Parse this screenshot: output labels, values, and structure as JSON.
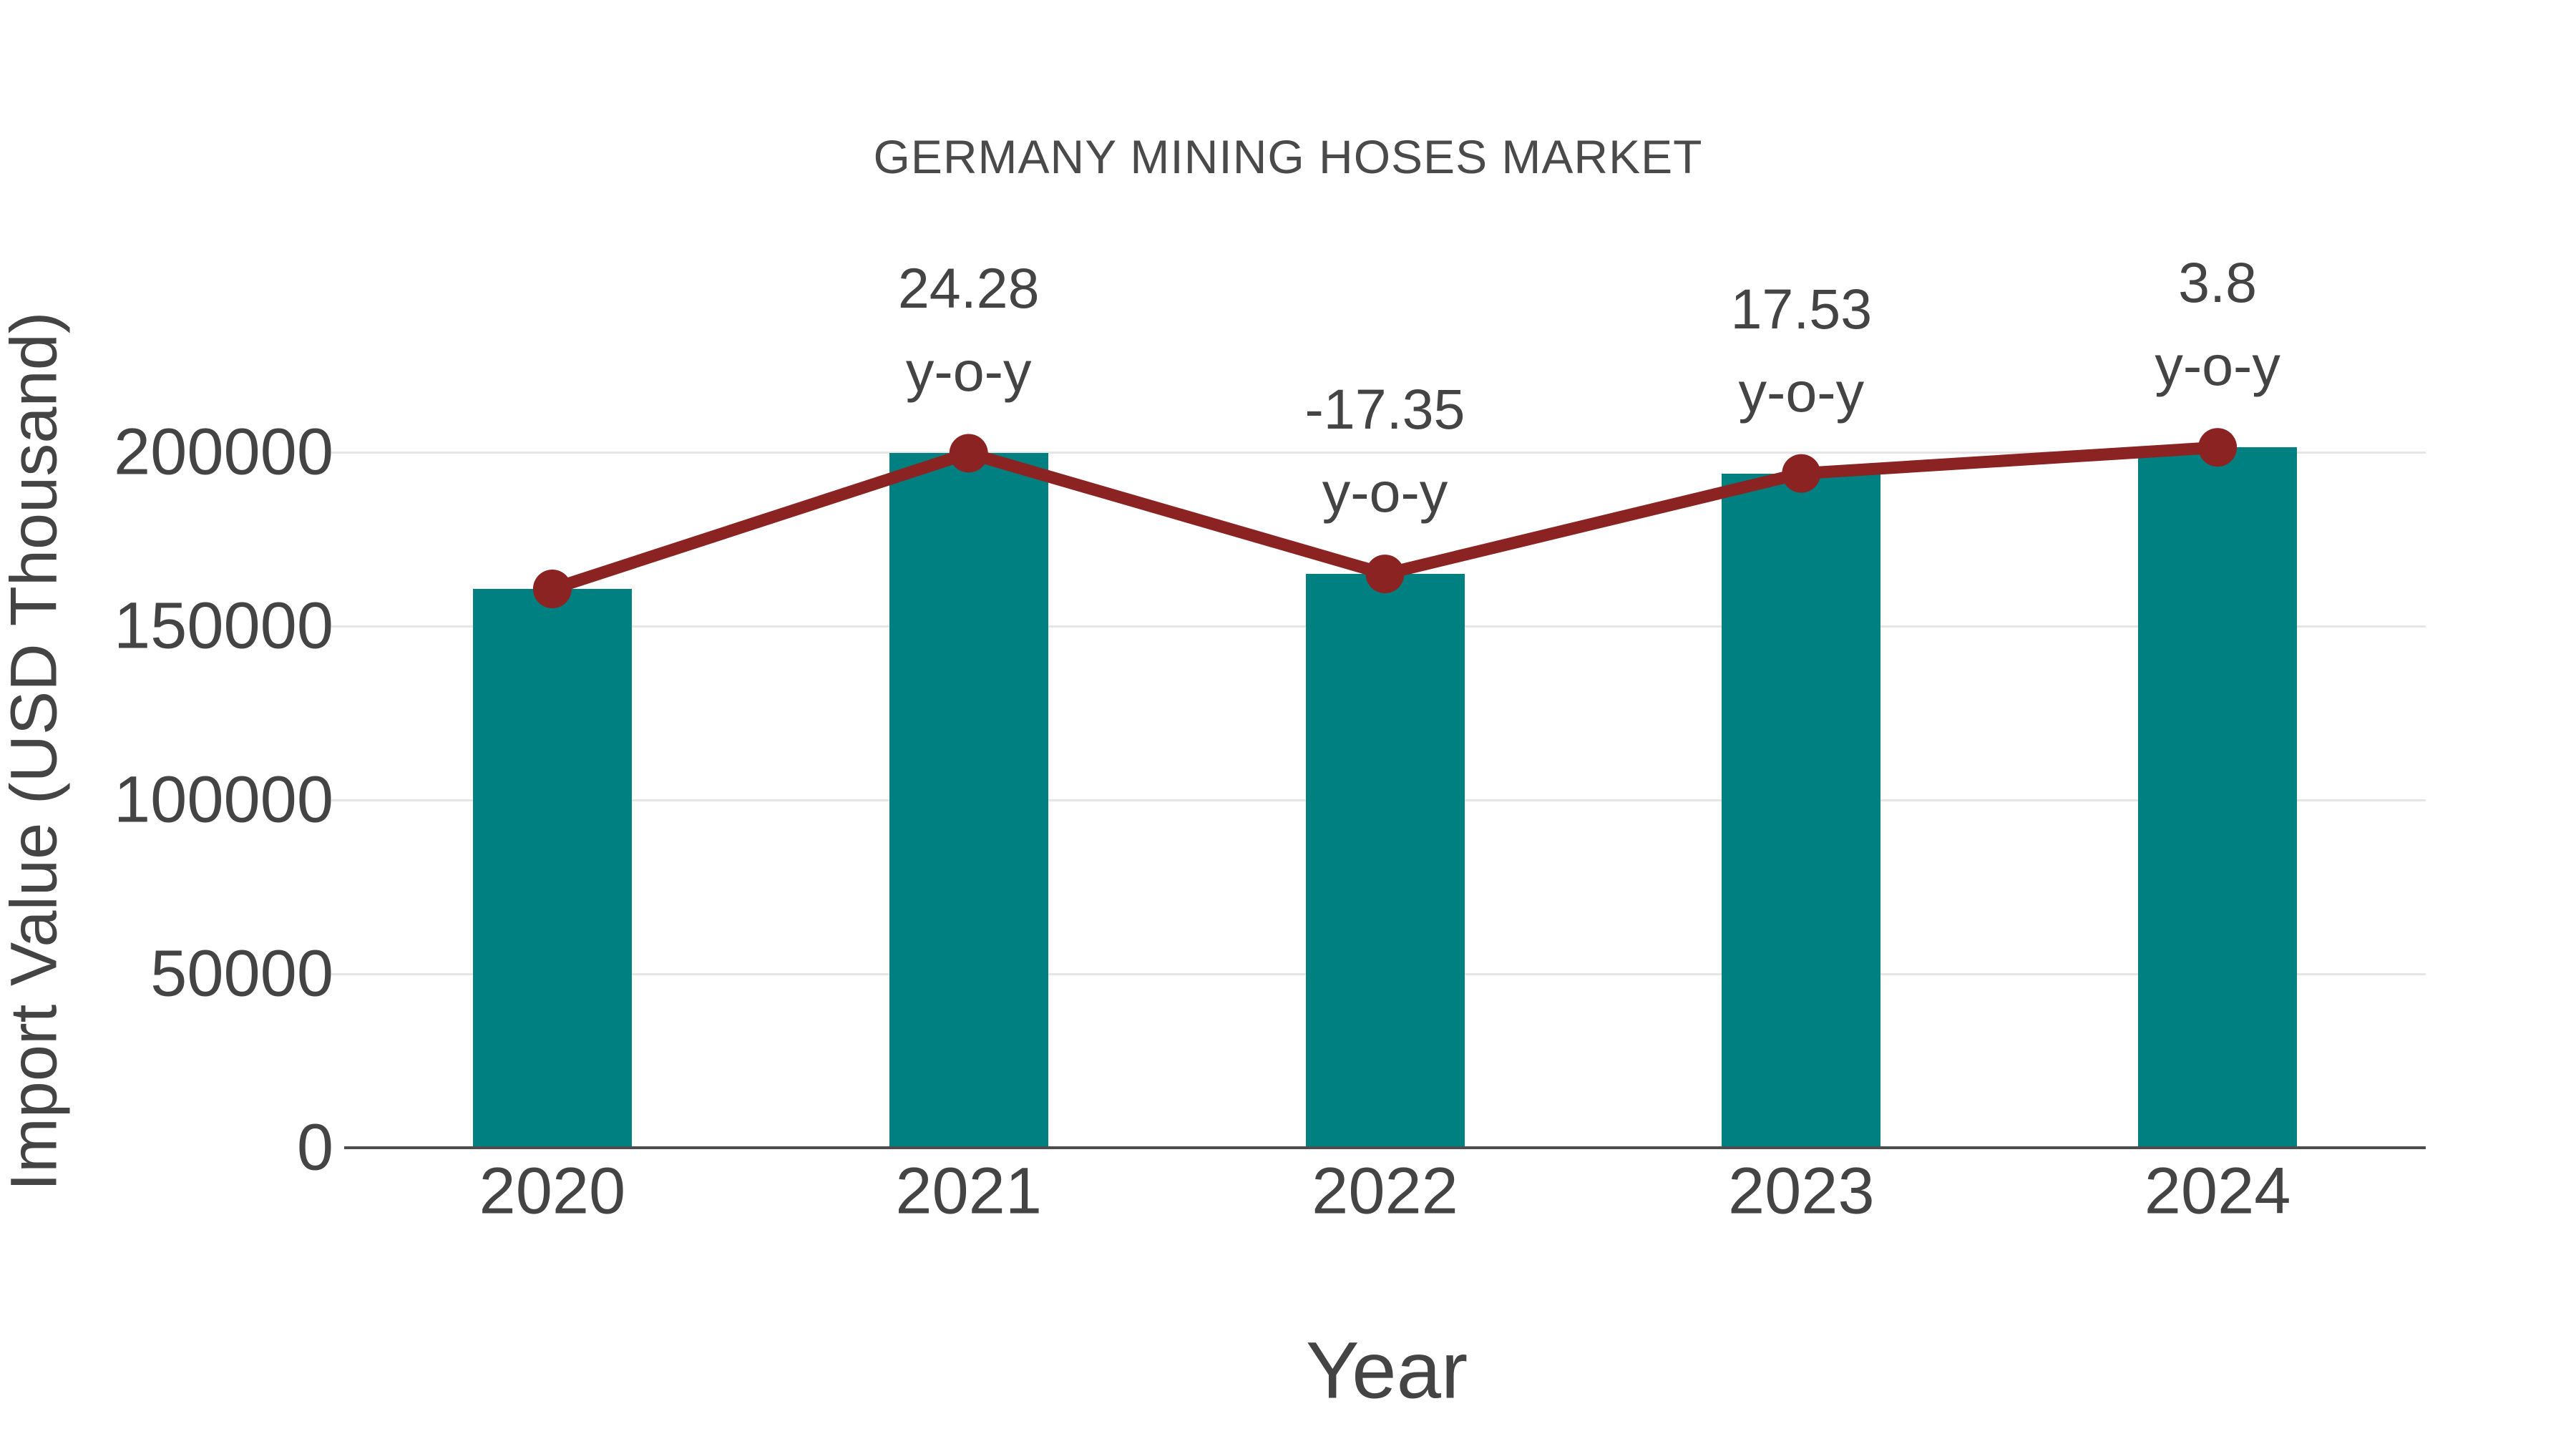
{
  "colors": {
    "bar": "#008080",
    "line": "#8B2323",
    "grid": "#e6e6e6",
    "axis": "#4d4d4d",
    "text": "#444444",
    "title_text": "#4a4a4a",
    "background": "#ffffff"
  },
  "chart_data": {
    "type": "bar+line",
    "title": "GERMANY MINING HOSES MARKET",
    "x_axis": {
      "title": "Year",
      "categories": [
        "2020",
        "2021",
        "2022",
        "2023",
        "2024"
      ]
    },
    "y_axis": {
      "title": "Import Value (USD Thousand)",
      "tick_labels": [
        "0",
        "50000",
        "100000",
        "150000",
        "200000"
      ],
      "tick_values": [
        0,
        50000,
        100000,
        150000,
        200000
      ],
      "range": [
        0,
        230000
      ],
      "gridlines": true
    },
    "series": [
      {
        "name": "import-value-bars",
        "type": "bar",
        "color": "#008080",
        "values": [
          160700,
          199700,
          165000,
          193900,
          201400
        ],
        "values_estimated_from_gridlines": true
      },
      {
        "name": "import-value-trend",
        "type": "line",
        "color": "#8B2323",
        "marker": "circle",
        "values": [
          160700,
          199700,
          165000,
          193900,
          201400
        ],
        "point_labels": [
          null,
          {
            "value": "24.28",
            "unit": "y-o-y"
          },
          {
            "value": "-17.35",
            "unit": "y-o-y"
          },
          {
            "value": "17.53",
            "unit": "y-o-y"
          },
          {
            "value": "3.8",
            "unit": "y-o-y"
          }
        ]
      }
    ],
    "legend": null
  }
}
